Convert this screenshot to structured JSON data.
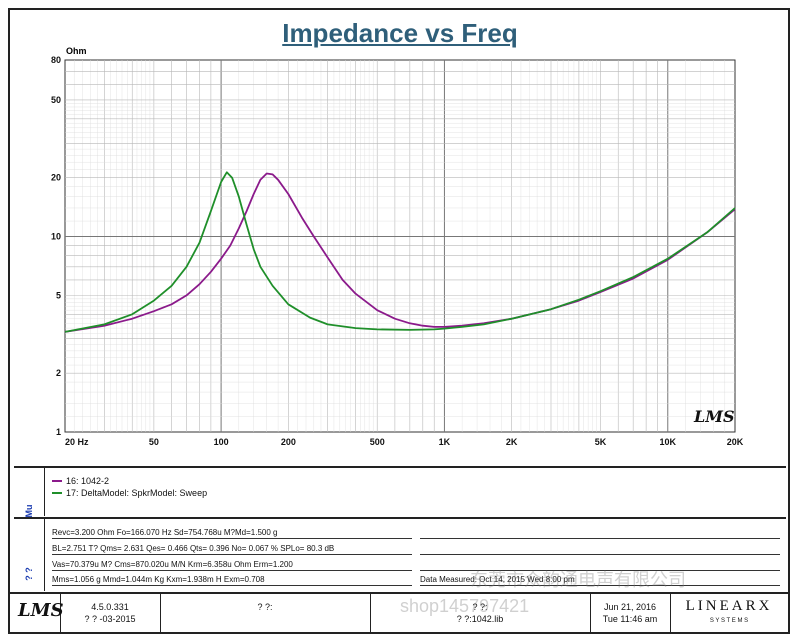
{
  "chart_data": {
    "type": "line",
    "title": "Impedance vs Freq",
    "ylabel": "Ohm",
    "xlabel": "",
    "x_scale": "log",
    "y_scale": "log",
    "xlim": [
      20,
      20000
    ],
    "ylim": [
      1,
      80
    ],
    "x_ticks": [
      {
        "value": 20,
        "label": "20  Hz"
      },
      {
        "value": 50,
        "label": "50"
      },
      {
        "value": 100,
        "label": "100"
      },
      {
        "value": 200,
        "label": "200"
      },
      {
        "value": 500,
        "label": "500"
      },
      {
        "value": 1000,
        "label": "1K"
      },
      {
        "value": 2000,
        "label": "2K"
      },
      {
        "value": 5000,
        "label": "5K"
      },
      {
        "value": 10000,
        "label": "10K"
      },
      {
        "value": 20000,
        "label": "20K"
      }
    ],
    "y_ticks": [
      {
        "value": 1,
        "label": "1"
      },
      {
        "value": 2,
        "label": "2"
      },
      {
        "value": 5,
        "label": "5"
      },
      {
        "value": 10,
        "label": "10"
      },
      {
        "value": 20,
        "label": "20"
      },
      {
        "value": 50,
        "label": "50"
      },
      {
        "value": 80,
        "label": "80"
      }
    ],
    "grid": true,
    "series": [
      {
        "name": "16: 1042-2",
        "color": "#8b1a8b",
        "points": [
          [
            20,
            3.25
          ],
          [
            30,
            3.5
          ],
          [
            40,
            3.8
          ],
          [
            50,
            4.15
          ],
          [
            60,
            4.5
          ],
          [
            70,
            5.0
          ],
          [
            80,
            5.7
          ],
          [
            90,
            6.6
          ],
          [
            100,
            7.7
          ],
          [
            110,
            9.0
          ],
          [
            120,
            11.0
          ],
          [
            130,
            13.5
          ],
          [
            140,
            16.5
          ],
          [
            150,
            19.5
          ],
          [
            160,
            21.0
          ],
          [
            170,
            20.8
          ],
          [
            180,
            19.5
          ],
          [
            200,
            16.5
          ],
          [
            230,
            12.5
          ],
          [
            260,
            10.0
          ],
          [
            300,
            7.8
          ],
          [
            350,
            6.0
          ],
          [
            400,
            5.1
          ],
          [
            500,
            4.2
          ],
          [
            600,
            3.8
          ],
          [
            700,
            3.6
          ],
          [
            800,
            3.5
          ],
          [
            900,
            3.45
          ],
          [
            1000,
            3.45
          ],
          [
            1200,
            3.5
          ],
          [
            1500,
            3.6
          ],
          [
            2000,
            3.8
          ],
          [
            3000,
            4.25
          ],
          [
            4000,
            4.7
          ],
          [
            5000,
            5.2
          ],
          [
            7000,
            6.1
          ],
          [
            10000,
            7.6
          ],
          [
            15000,
            10.5
          ],
          [
            20000,
            13.8
          ]
        ]
      },
      {
        "name": "17: DeltaModel: SpkrModel: Sweep",
        "color": "#1f8f2a",
        "points": [
          [
            20,
            3.25
          ],
          [
            30,
            3.55
          ],
          [
            40,
            4.0
          ],
          [
            50,
            4.7
          ],
          [
            60,
            5.6
          ],
          [
            70,
            7.0
          ],
          [
            80,
            9.3
          ],
          [
            90,
            13.5
          ],
          [
            100,
            19.0
          ],
          [
            106,
            21.3
          ],
          [
            112,
            20.0
          ],
          [
            120,
            16.0
          ],
          [
            130,
            11.5
          ],
          [
            140,
            8.6
          ],
          [
            150,
            7.0
          ],
          [
            170,
            5.6
          ],
          [
            200,
            4.5
          ],
          [
            250,
            3.85
          ],
          [
            300,
            3.55
          ],
          [
            400,
            3.4
          ],
          [
            500,
            3.35
          ],
          [
            700,
            3.33
          ],
          [
            900,
            3.35
          ],
          [
            1000,
            3.38
          ],
          [
            1200,
            3.45
          ],
          [
            1500,
            3.55
          ],
          [
            2000,
            3.8
          ],
          [
            3000,
            4.25
          ],
          [
            4000,
            4.75
          ],
          [
            5000,
            5.25
          ],
          [
            7000,
            6.2
          ],
          [
            10000,
            7.7
          ],
          [
            15000,
            10.5
          ],
          [
            20000,
            14.0
          ]
        ]
      }
    ]
  },
  "legend": {
    "item1": "16: 1042-2",
    "item2": "17: DeltaModel: SpkrModel: Sweep",
    "side_label": "Mu"
  },
  "params": {
    "side_label": "? ?",
    "line1": "Revc=3.200 Ohm  Fo=166.070 Hz  Sd=754.768u M?Md=1.500 g",
    "line2": "BL=2.751 T?   Qms= 2.631  Qes= 0.466  Qts= 0.396  No= 0.067 %  SPLo= 80.3 dB",
    "line3": "Vas=70.379u M?  Cms=870.020u M/N  Krm=6.358u Ohm  Erm=1.200",
    "line4": "Mms=1.056 g  Mmd=1.044m Kg  Kxm=1.938m H  Exm=0.708",
    "measured": "Data Measured: Oct 14, 2015  Wed  8:00 pm"
  },
  "footer": {
    "logo": "LMS",
    "version": "4.5.0.331",
    "date_code": "? ?  -03-2015",
    "cell2": "? ?:",
    "cell3a": "? ?:",
    "cell3b": "? ?:1042.lib",
    "date": "Jun 21, 2016",
    "time": "Tue 11:46 am",
    "brand": "LINEARX",
    "brand_sub": "S  Y  S  T  E  M  S"
  },
  "watermark": {
    "cn": "东莞市众韵通电声有限公司",
    "shop": "shop145797421"
  },
  "plot_logo": "LMS"
}
